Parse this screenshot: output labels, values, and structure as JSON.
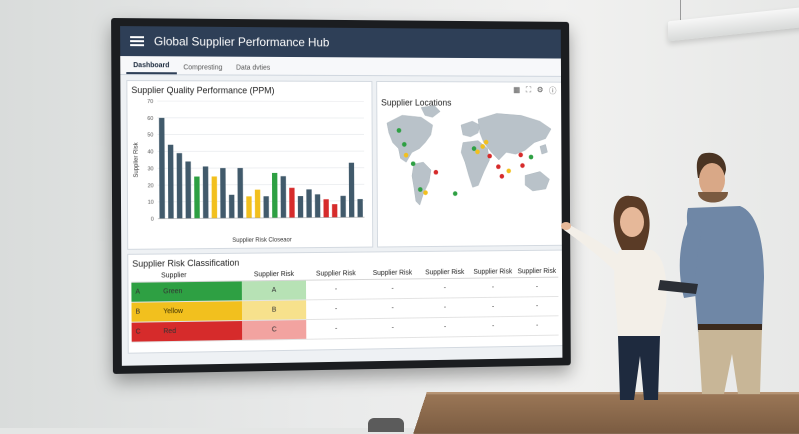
{
  "dashboard": {
    "title": "Global Supplier Performance Hub",
    "tabs": [
      "Dashboard",
      "Compresting",
      "Data dvties"
    ],
    "quality_chart": {
      "title": "Supplier Quality Performance (PPM)",
      "ylabel": "Supplier Risk",
      "xlabel": "Supplier Risk Closeaor"
    },
    "map_title": "Supplier Locations",
    "risk_table": {
      "title": "Supplier Risk Classification",
      "headers": [
        "Supplier",
        "Supplier Risk",
        "Supplier Risk",
        "Supplier Risk",
        "Supplier Risk",
        "Supplier Risk",
        "Supplier Risk"
      ],
      "rows": [
        {
          "code": "A",
          "name": "Green",
          "grade": "A",
          "color": "#2ea043",
          "tint": "#b7e2b5"
        },
        {
          "code": "B",
          "name": "Yellow",
          "grade": "B",
          "color": "#f2c01e",
          "tint": "#f7e18c"
        },
        {
          "code": "C",
          "name": "Red",
          "grade": "C",
          "color": "#d62b2b",
          "tint": "#f2a3a0"
        }
      ],
      "empty_cell": "-"
    }
  },
  "chart_data": {
    "type": "bar",
    "title": "Supplier Quality Performance (PPM)",
    "ylabel": "Supplier Risk",
    "xlabel": "Supplier Risk Closeaor",
    "ylim": [
      0,
      70
    ],
    "yticks": [
      0,
      10,
      20,
      30,
      40,
      50,
      60,
      70
    ],
    "values": [
      60,
      44,
      39,
      34,
      25,
      31,
      25,
      30,
      14,
      30,
      13,
      17,
      13,
      27,
      25,
      18,
      13,
      17,
      14,
      11,
      8,
      13,
      33,
      11
    ],
    "colors": [
      "#415a6b",
      "#415a6b",
      "#415a6b",
      "#415a6b",
      "#2ea043",
      "#415a6b",
      "#f2c01e",
      "#415a6b",
      "#415a6b",
      "#415a6b",
      "#f2c01e",
      "#f2c01e",
      "#415a6b",
      "#2ea043",
      "#415a6b",
      "#d62b2b",
      "#415a6b",
      "#415a6b",
      "#415a6b",
      "#d62b2b",
      "#d62b2b",
      "#415a6b",
      "#415a6b",
      "#415a6b"
    ],
    "grid": true
  },
  "map_markers": {
    "points": [
      {
        "x": 0.09,
        "y": 0.25,
        "c": "#2ea043"
      },
      {
        "x": 0.12,
        "y": 0.38,
        "c": "#2ea043"
      },
      {
        "x": 0.13,
        "y": 0.48,
        "c": "#f2c01e"
      },
      {
        "x": 0.17,
        "y": 0.56,
        "c": "#2ea043"
      },
      {
        "x": 0.21,
        "y": 0.8,
        "c": "#2ea043"
      },
      {
        "x": 0.24,
        "y": 0.83,
        "c": "#f2c01e"
      },
      {
        "x": 0.3,
        "y": 0.64,
        "c": "#d62b2b"
      },
      {
        "x": 0.41,
        "y": 0.84,
        "c": "#2ea043"
      },
      {
        "x": 0.52,
        "y": 0.42,
        "c": "#2ea043"
      },
      {
        "x": 0.54,
        "y": 0.45,
        "c": "#f2c01e"
      },
      {
        "x": 0.57,
        "y": 0.4,
        "c": "#f2c01e"
      },
      {
        "x": 0.59,
        "y": 0.36,
        "c": "#f2c01e"
      },
      {
        "x": 0.61,
        "y": 0.49,
        "c": "#d62b2b"
      },
      {
        "x": 0.66,
        "y": 0.59,
        "c": "#d62b2b"
      },
      {
        "x": 0.72,
        "y": 0.63,
        "c": "#f2c01e"
      },
      {
        "x": 0.79,
        "y": 0.48,
        "c": "#d62b2b"
      },
      {
        "x": 0.8,
        "y": 0.58,
        "c": "#d62b2b"
      },
      {
        "x": 0.85,
        "y": 0.5,
        "c": "#2ea043"
      },
      {
        "x": 0.68,
        "y": 0.68,
        "c": "#d62b2b"
      }
    ]
  }
}
